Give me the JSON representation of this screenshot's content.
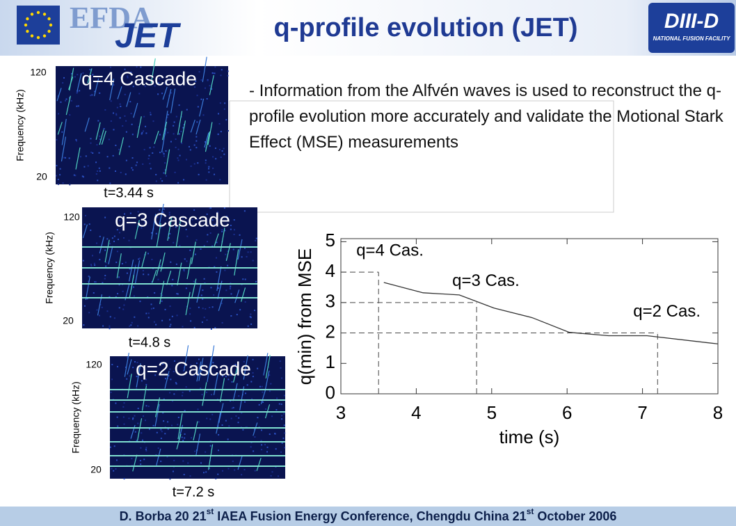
{
  "header": {
    "title": "q-profile evolution (JET)",
    "logo_left": [
      "EFDA",
      "JET"
    ],
    "logo_right": [
      "DIII-D",
      "NATIONAL FUSION FACILITY"
    ]
  },
  "panels": [
    {
      "title": "q=4 Cascade",
      "ytick_top": "120",
      "ytick_bottom": "20",
      "ylabel": "Frequency (kHz)",
      "time": "t=3.44 s"
    },
    {
      "title": "q=3 Cascade",
      "ytick_top": "120",
      "ytick_bottom": "20",
      "ylabel": "Frequency (kHz)",
      "time": "t=4.8 s"
    },
    {
      "title": "q=2 Cascade",
      "ytick_top": "120",
      "ytick_bottom": "20",
      "ylabel": "Frequency (kHz)",
      "time": "t=7.2 s"
    }
  ],
  "bullet": "- Information from the Alfvén waves is used to reconstruct the q-profile evolution more accurately and validate the Motional Stark Effect (MSE) measurements",
  "chart_data": {
    "type": "line",
    "xlabel": "time (s)",
    "ylabel": "q(min) from MSE",
    "x": [
      3.57,
      4.09,
      4.57,
      5.03,
      5.54,
      6.03,
      6.55,
      7.06,
      8.0
    ],
    "values": [
      3.66,
      3.32,
      3.25,
      2.82,
      2.5,
      2.02,
      1.91,
      1.91,
      1.64
    ],
    "color": "#333333",
    "xlim": [
      3,
      8
    ],
    "ylim": [
      0,
      5.1
    ],
    "xticks": [
      3,
      4,
      5,
      6,
      7,
      8
    ],
    "yticks": [
      0,
      1,
      2,
      3,
      4,
      5
    ],
    "guides": [
      {
        "x": 3.5,
        "y": 4,
        "label": "q=4 Cas."
      },
      {
        "x": 4.8,
        "y": 3,
        "label": "q=3 Cas."
      },
      {
        "x": 7.2,
        "y": 2,
        "label": "q=2 Cas."
      }
    ]
  },
  "footer": [
    "D. Borba  20  21",
    "st",
    " IAEA Fusion Energy Conference, Chengdu China 21",
    "st",
    " October 2006"
  ]
}
